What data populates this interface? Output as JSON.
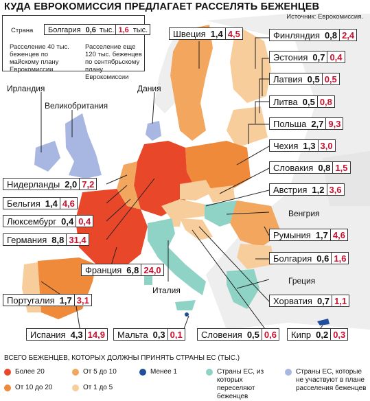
{
  "title": "КУДА ЕВРОКОМИССИЯ ПРЕДЛАГАЕТ РАССЕЛЯТЬ БЕЖЕНЦЕВ",
  "source": "Источник: Еврокомиссия.",
  "key": {
    "country_label": "Страна",
    "country": "Болгария",
    "a": "0,6",
    "unit1": "тыс.",
    "b": "1,6",
    "unit2": "тыс.",
    "note_left": "Расселение 40 тыс. беженцев по майскому плану Еврокомиссии",
    "note_right": "Расселение еще 120 тыс. беженцев по сентябрьскому плану Еврокомиссии"
  },
  "countries": {
    "sweden": {
      "name": "Швеция",
      "a": "1,4",
      "b": "4,5"
    },
    "finland": {
      "name": "Финляндия",
      "a": "0,8",
      "b": "2,4"
    },
    "estonia": {
      "name": "Эстония",
      "a": "0,7",
      "b": "0,4"
    },
    "latvia": {
      "name": "Латвия",
      "a": "0,5",
      "b": "0,5"
    },
    "lithuania": {
      "name": "Литва",
      "a": "0,5",
      "b": "0,8"
    },
    "poland": {
      "name": "Польша",
      "a": "2,7",
      "b": "9,3"
    },
    "czech": {
      "name": "Чехия",
      "a": "1,3",
      "b": "3,0"
    },
    "slovakia": {
      "name": "Словакия",
      "a": "0,8",
      "b": "1,5"
    },
    "austria": {
      "name": "Австрия",
      "a": "1,2",
      "b": "3,6"
    },
    "romania": {
      "name": "Румыния",
      "a": "1,7",
      "b": "4,6"
    },
    "bulgaria": {
      "name": "Болгария",
      "a": "0,6",
      "b": "1,6"
    },
    "croatia": {
      "name": "Хорватия",
      "a": "0,7",
      "b": "1,1"
    },
    "cyprus": {
      "name": "Кипр",
      "a": "0,2",
      "b": "0,3"
    },
    "netherlands": {
      "name": "Нидерланды",
      "a": "2,0",
      "b": "7,2"
    },
    "belgium": {
      "name": "Бельгия",
      "a": "1,4",
      "b": "4,6"
    },
    "luxembourg": {
      "name": "Люксембург",
      "a": "0,4",
      "b": "0,4"
    },
    "germany": {
      "name": "Германия",
      "a": "8,8",
      "b": "31,4"
    },
    "france": {
      "name": "Франция",
      "a": "6,8",
      "b": "24,0"
    },
    "portugal": {
      "name": "Португалия",
      "a": "1,7",
      "b": "3,1"
    },
    "spain": {
      "name": "Испания",
      "a": "4,3",
      "b": "14,9"
    },
    "malta": {
      "name": "Мальта",
      "a": "0,3",
      "b": "0,1"
    },
    "slovenia": {
      "name": "Словения",
      "a": "0,5",
      "b": "0,6"
    }
  },
  "labels": {
    "ireland": "Ирландия",
    "uk": "Великобритания",
    "denmark": "Дания",
    "hungary": "Венгрия",
    "greece": "Греция",
    "italy": "Италия"
  },
  "legend": {
    "header": "ВСЕГО БЕЖЕНЦЕВ, КОТОРЫХ ДОЛЖНЫ ПРИНЯТЬ СТРАНЫ ЕС (ТЫС.)",
    "items": [
      {
        "label": "Более 20",
        "color": "#e8472a"
      },
      {
        "label": "От 10 до 20",
        "color": "#ef8a3a"
      },
      {
        "label": "От 5 до 10",
        "color": "#f2a65e"
      },
      {
        "label": "От 1 до 5",
        "color": "#f8cd9c"
      },
      {
        "label": "Менее 1",
        "color": "#1f4e9c"
      },
      {
        "label": "Страны ЕС, из которых переселяют беженцев",
        "color": "#8fd3c6"
      },
      {
        "label": "Страны ЕС, которые не участвуют в плане расселения беженцев",
        "color": "#a8b6e2"
      }
    ]
  }
}
